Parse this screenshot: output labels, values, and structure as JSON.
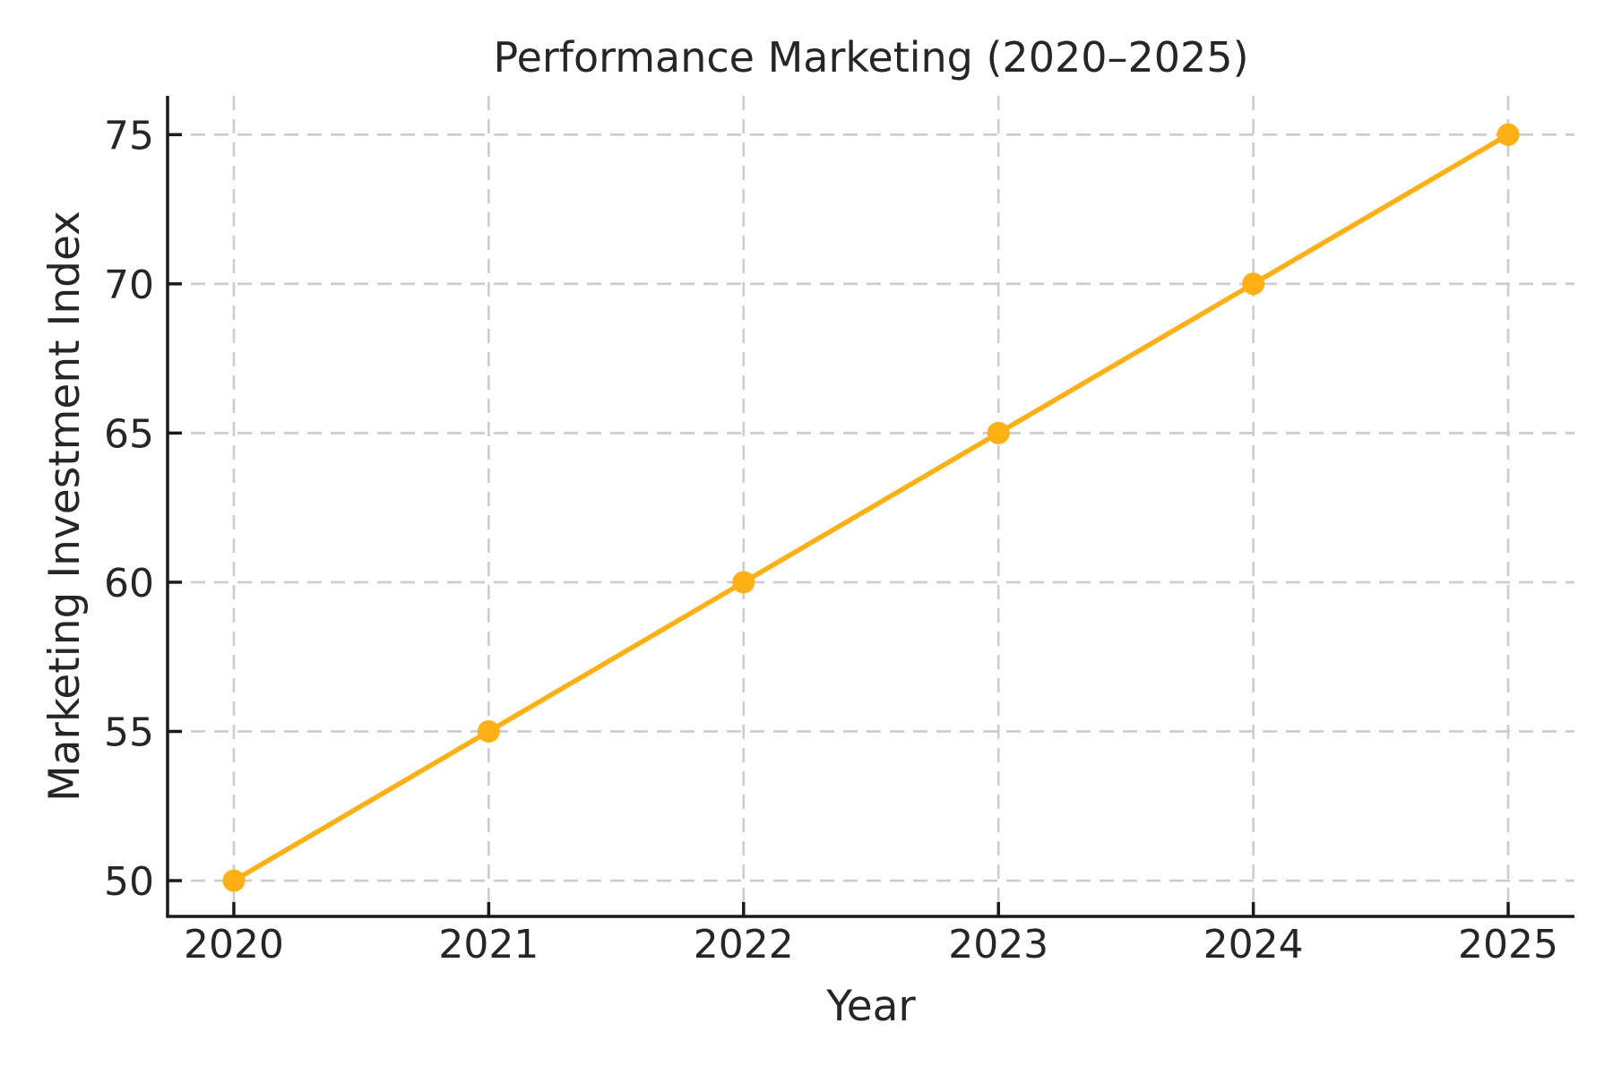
{
  "chart_data": {
    "type": "line",
    "title": "Performance Marketing (2020–2025)",
    "xlabel": "Year",
    "ylabel": "Marketing Investment Index",
    "x": [
      2020,
      2021,
      2022,
      2023,
      2024,
      2025
    ],
    "series": [
      {
        "name": "Marketing Investment Index",
        "values": [
          50,
          55,
          60,
          65,
          70,
          75
        ]
      }
    ],
    "xticks": [
      2020,
      2021,
      2022,
      2023,
      2024,
      2025
    ],
    "yticks": [
      50,
      55,
      60,
      65,
      70,
      75
    ],
    "xlim": [
      2019.74,
      2025.26
    ],
    "ylim": [
      48.8,
      76.3
    ],
    "grid": "dashed",
    "legend_position": "none",
    "colors": {
      "line": "#FFB014",
      "marker": "#FFB014",
      "grid": "#cccccc",
      "axis": "#1a1a1a",
      "text": "#262626",
      "background": "#ffffff"
    }
  }
}
